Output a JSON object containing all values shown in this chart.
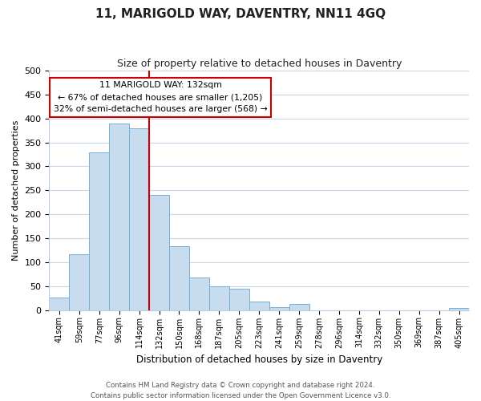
{
  "title": "11, MARIGOLD WAY, DAVENTRY, NN11 4GQ",
  "subtitle": "Size of property relative to detached houses in Daventry",
  "xlabel": "Distribution of detached houses by size in Daventry",
  "ylabel": "Number of detached properties",
  "bar_labels": [
    "41sqm",
    "59sqm",
    "77sqm",
    "96sqm",
    "114sqm",
    "132sqm",
    "150sqm",
    "168sqm",
    "187sqm",
    "205sqm",
    "223sqm",
    "241sqm",
    "259sqm",
    "278sqm",
    "296sqm",
    "314sqm",
    "332sqm",
    "350sqm",
    "369sqm",
    "387sqm",
    "405sqm"
  ],
  "bar_values": [
    27,
    117,
    330,
    390,
    380,
    240,
    133,
    68,
    50,
    45,
    18,
    6,
    13,
    0,
    0,
    0,
    0,
    0,
    0,
    0,
    5
  ],
  "bar_color": "#c8dcf0",
  "bar_edge_color": "#7aafd4",
  "vline_color": "#cc0000",
  "annotation_line1": "11 MARIGOLD WAY: 132sqm",
  "annotation_line2": "← 67% of detached houses are smaller (1,205)",
  "annotation_line3": "32% of semi-detached houses are larger (568) →",
  "annotation_box_color": "#ffffff",
  "annotation_box_edge": "#cc0000",
  "ylim": [
    0,
    500
  ],
  "yticks": [
    0,
    50,
    100,
    150,
    200,
    250,
    300,
    350,
    400,
    450,
    500
  ],
  "footer_line1": "Contains HM Land Registry data © Crown copyright and database right 2024.",
  "footer_line2": "Contains public sector information licensed under the Open Government Licence v3.0.",
  "bg_color": "#ffffff",
  "grid_color": "#c8d8e8"
}
